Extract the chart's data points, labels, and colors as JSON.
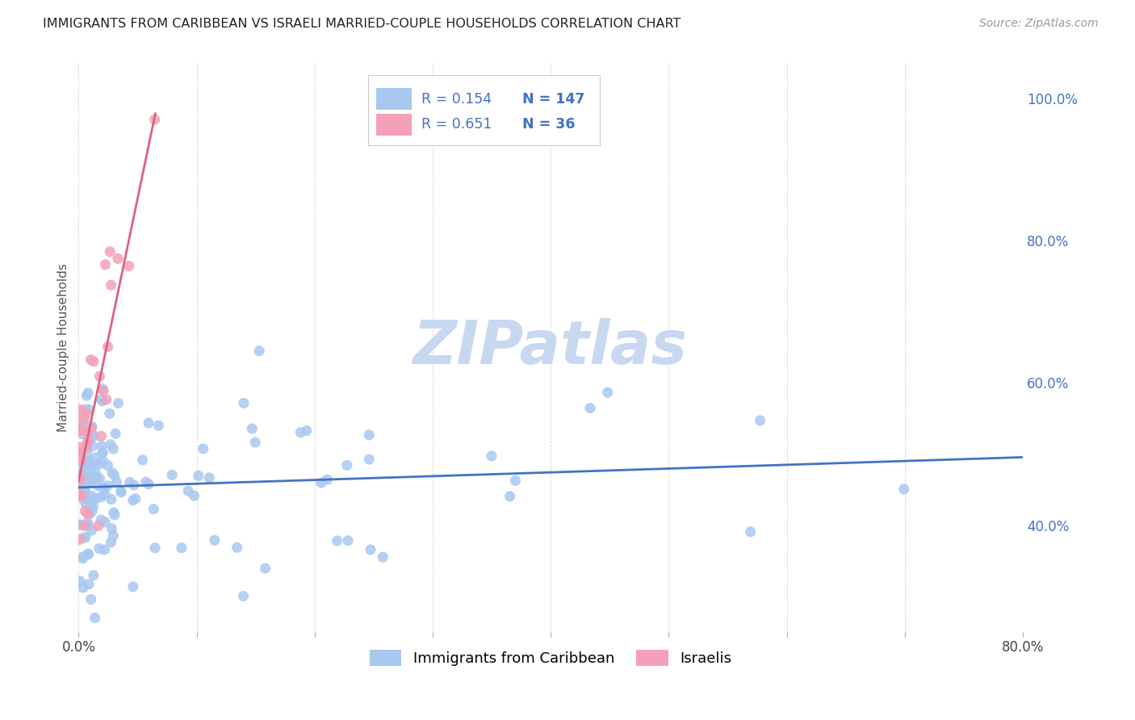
{
  "title": "IMMIGRANTS FROM CARIBBEAN VS ISRAELI MARRIED-COUPLE HOUSEHOLDS CORRELATION CHART",
  "source_text": "Source: ZipAtlas.com",
  "ylabel": "Married-couple Households",
  "xlim": [
    0.0,
    0.8
  ],
  "ylim": [
    0.25,
    1.05
  ],
  "xtick_positions": [
    0.0,
    0.1,
    0.2,
    0.3,
    0.4,
    0.5,
    0.6,
    0.7,
    0.8
  ],
  "xtick_labels": [
    "0.0%",
    "",
    "",
    "",
    "",
    "",
    "",
    "",
    "80.0%"
  ],
  "ytick_positions": [
    0.4,
    0.5,
    0.6,
    0.7,
    0.8,
    0.9,
    1.0
  ],
  "ytick_labels": [
    "40.0%",
    "",
    "60.0%",
    "",
    "80.0%",
    "",
    "100.0%"
  ],
  "blue_color": "#A8C8F0",
  "pink_color": "#F4A0B8",
  "blue_line_color": "#4472C4",
  "pink_line_color": "#E06080",
  "legend_R_color": "#4472C4",
  "legend_N_color": "#4472C4",
  "legend_R_blue": "0.154",
  "legend_N_blue": "147",
  "legend_R_pink": "0.651",
  "legend_N_pink": "36",
  "watermark": "ZIPatlas",
  "watermark_color": "#C8D8F0",
  "label_blue": "Immigrants from Caribbean",
  "label_pink": "Israelis"
}
